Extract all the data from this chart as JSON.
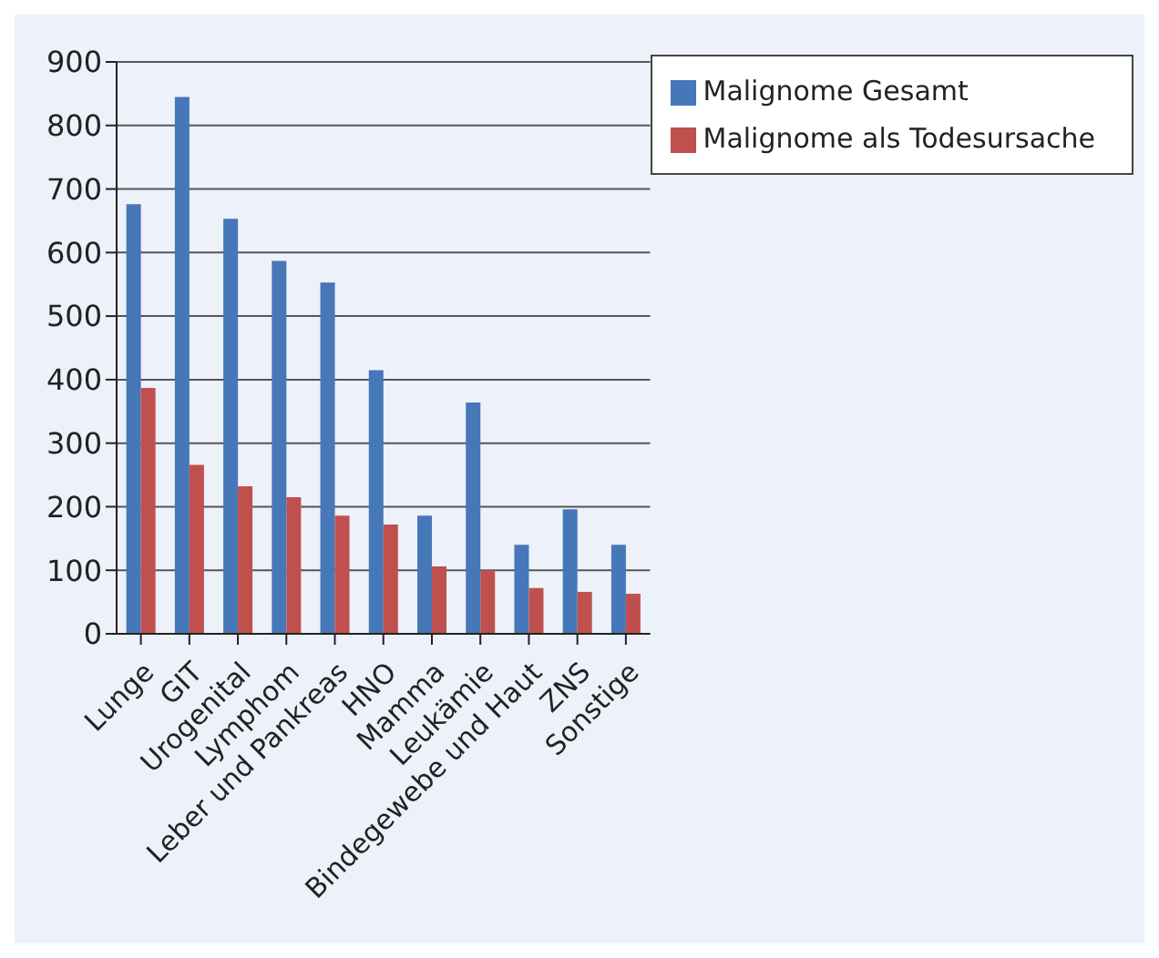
{
  "chart_data": {
    "type": "bar",
    "categories": [
      "Lunge",
      "GIT",
      "Urogenital",
      "Lymphom",
      "Leber und Pankreas",
      "HNO",
      "Mamma",
      "Leukämie",
      "Bindegewebe und Haut",
      "ZNS",
      "Sonstige"
    ],
    "series": [
      {
        "name": "Malignome Gesamt",
        "color": "#4677b8",
        "values": [
          676,
          845,
          653,
          587,
          553,
          415,
          186,
          364,
          140,
          196,
          140
        ]
      },
      {
        "name": "Malignome als Todesursache",
        "color": "#c0504d",
        "values": [
          387,
          266,
          232,
          215,
          186,
          172,
          106,
          100,
          72,
          66,
          63
        ]
      }
    ],
    "ylim": [
      0,
      900
    ],
    "yticks": [
      0,
      100,
      200,
      300,
      400,
      500,
      600,
      700,
      800,
      900
    ],
    "grid": "y",
    "legend": "top right"
  }
}
